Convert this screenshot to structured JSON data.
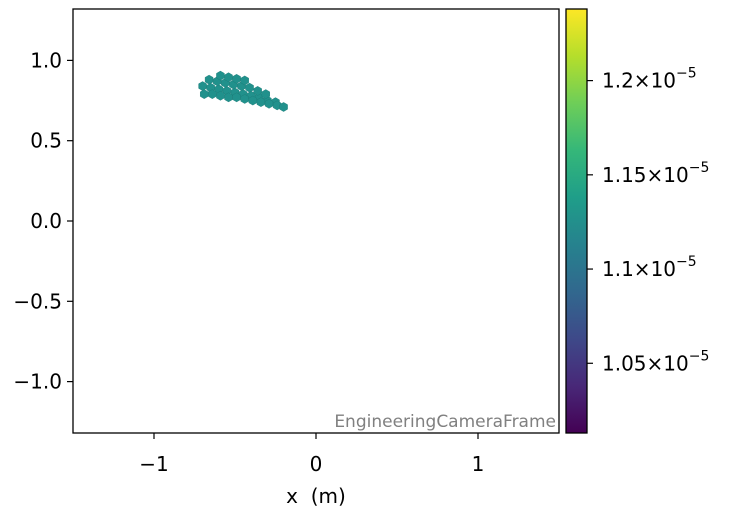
{
  "chart_data": {
    "type": "scatter",
    "xlabel": "x  (m)",
    "ylabel": "",
    "xlim": [
      -1.5,
      1.5
    ],
    "ylim": [
      -1.32,
      1.32
    ],
    "x_ticks": [
      -1,
      0,
      1
    ],
    "x_tick_labels": [
      "−1",
      "0",
      "1"
    ],
    "y_ticks": [
      1.0,
      0.5,
      0.0,
      -0.5,
      -1.0
    ],
    "y_tick_labels": [
      "1.0",
      "0.5",
      "0.0",
      "−0.5",
      "−1.0"
    ],
    "grid": false,
    "frame_label": "EngineeringCameraFrame",
    "marker": "hexagon",
    "marker_color": "#21918c",
    "series": [
      {
        "points": [
          [
            -0.7,
            0.84
          ],
          [
            -0.65,
            0.83
          ],
          [
            -0.6,
            0.82
          ],
          [
            -0.55,
            0.81
          ],
          [
            -0.5,
            0.8
          ],
          [
            -0.45,
            0.79
          ],
          [
            -0.4,
            0.78
          ],
          [
            -0.35,
            0.77
          ],
          [
            -0.3,
            0.75
          ],
          [
            -0.25,
            0.74
          ],
          [
            -0.69,
            0.79
          ],
          [
            -0.64,
            0.79
          ],
          [
            -0.59,
            0.78
          ],
          [
            -0.54,
            0.77
          ],
          [
            -0.49,
            0.77
          ],
          [
            -0.44,
            0.76
          ],
          [
            -0.39,
            0.75
          ],
          [
            -0.34,
            0.74
          ],
          [
            -0.29,
            0.73
          ],
          [
            -0.24,
            0.72
          ],
          [
            -0.2,
            0.71
          ],
          [
            -0.66,
            0.88
          ],
          [
            -0.61,
            0.87
          ],
          [
            -0.56,
            0.86
          ],
          [
            -0.51,
            0.85
          ],
          [
            -0.46,
            0.84
          ],
          [
            -0.41,
            0.83
          ],
          [
            -0.36,
            0.81
          ],
          [
            -0.31,
            0.79
          ],
          [
            -0.59,
            0.905
          ],
          [
            -0.54,
            0.895
          ],
          [
            -0.49,
            0.885
          ],
          [
            -0.44,
            0.875
          ]
        ],
        "value": 1.12e-05
      }
    ],
    "colorbar": {
      "colormap": "viridis",
      "range": [
        1.013e-05,
        1.238e-05
      ],
      "ticks": [
        1.05e-05,
        1.1e-05,
        1.15e-05,
        1.2e-05
      ],
      "tick_labels": [
        {
          "mantissa": "1.05",
          "base": "10",
          "exponent": "−5"
        },
        {
          "mantissa": "1.1",
          "base": "10",
          "exponent": "−5"
        },
        {
          "mantissa": "1.15",
          "base": "10",
          "exponent": "−5"
        },
        {
          "mantissa": "1.2",
          "base": "10",
          "exponent": "−5"
        }
      ],
      "stops": [
        "#440154",
        "#482878",
        "#3e4989",
        "#31688e",
        "#26828e",
        "#1f9e89",
        "#35b779",
        "#6ece58",
        "#b5de2b",
        "#fde725"
      ]
    }
  }
}
